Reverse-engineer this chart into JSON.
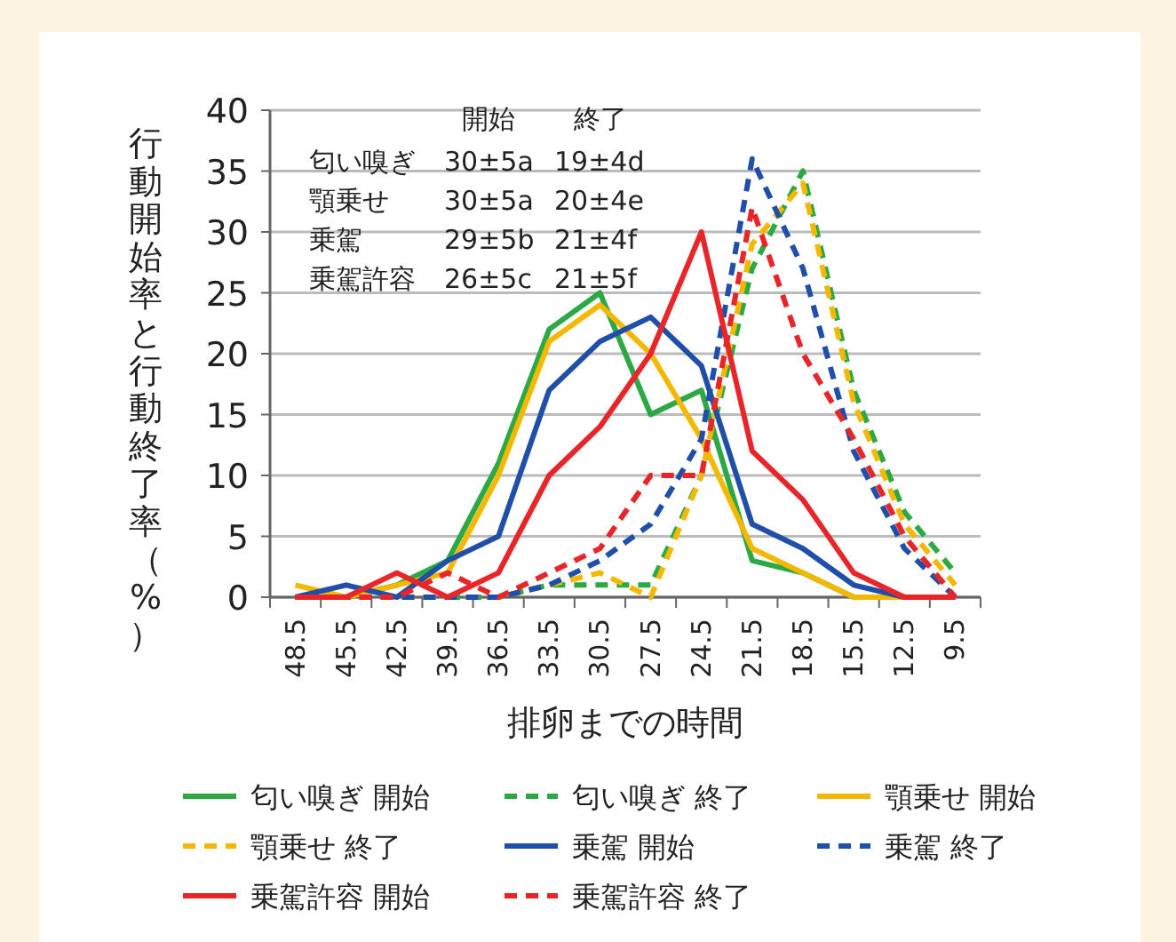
{
  "chart_data": {
    "type": "line",
    "xlabel": "排卵までの時間",
    "ylabel": "行動開始率と行動終了率（%）",
    "categories": [
      "48.5",
      "45.5",
      "42.5",
      "39.5",
      "36.5",
      "33.5",
      "30.5",
      "27.5",
      "24.5",
      "21.5",
      "18.5",
      "15.5",
      "12.5",
      "9.5"
    ],
    "ylim": [
      0,
      40
    ],
    "yticks": [
      0,
      5,
      10,
      15,
      20,
      25,
      30,
      35,
      40
    ],
    "grid": "y",
    "legend": "bottom",
    "marker": "none",
    "annotations": [
      "開始",
      "終了",
      "匂い嗅ぎ",
      "30±5a",
      "19±4d",
      "顎乗せ",
      "30±5a",
      "20±4e",
      "乗駕",
      "29±5b",
      "21±4f",
      "乗駕許容",
      "26±5c",
      "21±5f"
    ],
    "series": [
      {
        "name": "匂い嗅ぎ 開始",
        "color": "#2ca844",
        "line_style": "solid",
        "values": [
          0,
          0,
          1,
          3,
          11,
          22,
          25,
          15,
          17,
          3,
          2,
          0,
          null,
          null
        ]
      },
      {
        "name": "匂い嗅ぎ 終了",
        "color": "#2ca844",
        "line_style": "dashed",
        "values": [
          null,
          null,
          null,
          0,
          0,
          1,
          1,
          1,
          10,
          27,
          35,
          17,
          7,
          2
        ]
      },
      {
        "name": "顎乗せ 開始",
        "color": "#f5b800",
        "line_style": "solid",
        "values": [
          1,
          0,
          1,
          2,
          10,
          21,
          24,
          20,
          13,
          4,
          2,
          0,
          0,
          0
        ]
      },
      {
        "name": "顎乗せ 終了",
        "color": "#f5b800",
        "line_style": "dashed",
        "values": [
          0,
          0,
          0,
          0,
          0,
          1,
          2,
          0,
          10,
          29,
          34,
          16,
          6,
          1
        ]
      },
      {
        "name": "乗駕 開始",
        "color": "#1f4fa8",
        "line_style": "solid",
        "values": [
          0,
          1,
          0,
          3,
          5,
          17,
          21,
          23,
          19,
          6,
          4,
          1,
          0,
          0
        ]
      },
      {
        "name": "乗駕 終了",
        "color": "#1f4fa8",
        "line_style": "dashed",
        "values": [
          0,
          0,
          0,
          0,
          0,
          1,
          3,
          6,
          13,
          36,
          27,
          12,
          4,
          0
        ]
      },
      {
        "name": "乗駕許容 開始",
        "color": "#e8262a",
        "line_style": "solid",
        "values": [
          0,
          0,
          2,
          0,
          2,
          10,
          14,
          20,
          30,
          12,
          8,
          2,
          0,
          0
        ]
      },
      {
        "name": "乗駕許容 終了",
        "color": "#e8262a",
        "line_style": "dashed",
        "values": [
          0,
          0,
          0,
          2,
          0,
          2,
          4,
          10,
          10,
          32,
          20,
          13,
          5,
          0
        ]
      }
    ]
  }
}
